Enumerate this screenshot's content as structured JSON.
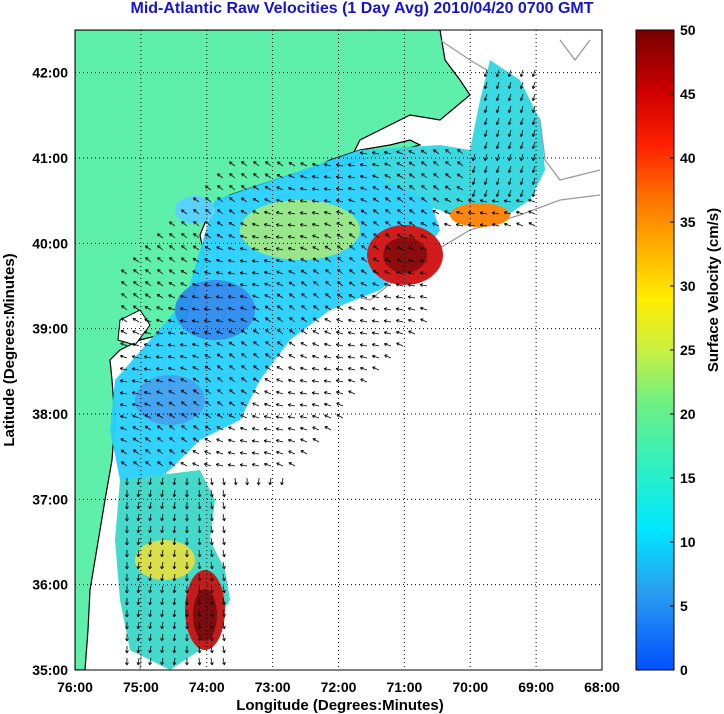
{
  "title": "Mid-Atlantic Raw Velocities (1 Day Avg) 2010/04/20 0700 GMT",
  "xlabel": "Longitude (Degrees:Minutes)",
  "ylabel": "Latitude (Degrees:Minutes)",
  "colorbar_label": "Surface Velocity (cm/s)",
  "x_ticks": [
    {
      "lon": -76,
      "label": "76:00"
    },
    {
      "lon": -75,
      "label": "75:00"
    },
    {
      "lon": -74,
      "label": "74:00"
    },
    {
      "lon": -73,
      "label": "73:00"
    },
    {
      "lon": -72,
      "label": "72:00"
    },
    {
      "lon": -71,
      "label": "71:00"
    },
    {
      "lon": -70,
      "label": "70:00"
    },
    {
      "lon": -69,
      "label": "69:00"
    },
    {
      "lon": -68,
      "label": "68:00"
    }
  ],
  "y_ticks": [
    {
      "lat": 35,
      "label": "35:00"
    },
    {
      "lat": 36,
      "label": "36:00"
    },
    {
      "lat": 37,
      "label": "37:00"
    },
    {
      "lat": 38,
      "label": "38:00"
    },
    {
      "lat": 39,
      "label": "39:00"
    },
    {
      "lat": 40,
      "label": "40:00"
    },
    {
      "lat": 41,
      "label": "41:00"
    },
    {
      "lat": 42,
      "label": "42:00"
    }
  ],
  "x_range": [
    -76,
    -68
  ],
  "y_range": [
    35,
    42.5
  ],
  "colorbar_ticks": [
    0,
    5,
    10,
    15,
    20,
    25,
    30,
    35,
    40,
    45,
    50
  ],
  "colorbar_range": [
    0,
    50
  ],
  "colors": {
    "land": "#5ef0aa",
    "coast": "#000000",
    "grid": "#000000",
    "title": "#1414d2",
    "bathymetry": "#9a9a9a"
  }
}
